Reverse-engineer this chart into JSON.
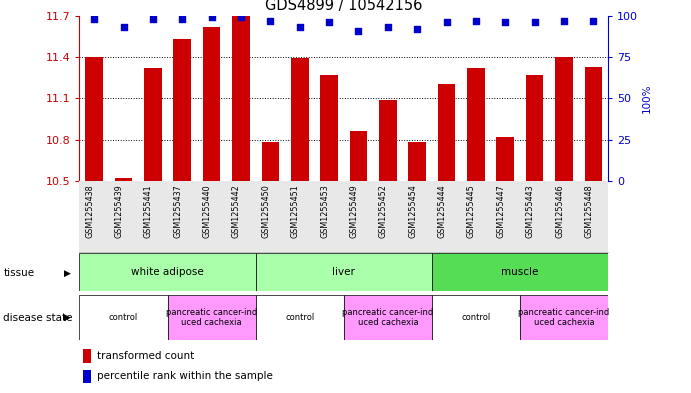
{
  "title": "GDS4899 / 10542156",
  "samples": [
    "GSM1255438",
    "GSM1255439",
    "GSM1255441",
    "GSM1255437",
    "GSM1255440",
    "GSM1255442",
    "GSM1255450",
    "GSM1255451",
    "GSM1255453",
    "GSM1255449",
    "GSM1255452",
    "GSM1255454",
    "GSM1255444",
    "GSM1255445",
    "GSM1255447",
    "GSM1255443",
    "GSM1255446",
    "GSM1255448"
  ],
  "bar_values": [
    11.4,
    10.52,
    11.32,
    11.53,
    11.62,
    11.7,
    10.78,
    11.39,
    11.27,
    10.86,
    11.09,
    10.78,
    11.2,
    11.32,
    10.82,
    11.27,
    11.4,
    11.33
  ],
  "percentile_values": [
    98,
    93,
    98,
    98,
    99,
    99,
    97,
    93,
    96,
    91,
    93,
    92,
    96,
    97,
    96,
    96,
    97,
    97
  ],
  "bar_color": "#cc0000",
  "percentile_color": "#0000cc",
  "ylim_left": [
    10.5,
    11.7
  ],
  "ylim_right": [
    0,
    100
  ],
  "yticks_left": [
    10.5,
    10.8,
    11.1,
    11.4,
    11.7
  ],
  "yticks_right": [
    0,
    25,
    50,
    75,
    100
  ],
  "tissue_groups": [
    {
      "label": "white adipose",
      "start": 0,
      "end": 6,
      "color": "#aaffaa"
    },
    {
      "label": "liver",
      "start": 6,
      "end": 12,
      "color": "#aaffaa"
    },
    {
      "label": "muscle",
      "start": 12,
      "end": 18,
      "color": "#55dd55"
    }
  ],
  "disease_groups": [
    {
      "label": "control",
      "start": 0,
      "end": 3,
      "color": "#ffffff"
    },
    {
      "label": "pancreatic cancer-ind\nuced cachexia",
      "start": 3,
      "end": 6,
      "color": "#ff99ff"
    },
    {
      "label": "control",
      "start": 6,
      "end": 9,
      "color": "#ffffff"
    },
    {
      "label": "pancreatic cancer-ind\nuced cachexia",
      "start": 9,
      "end": 12,
      "color": "#ff99ff"
    },
    {
      "label": "control",
      "start": 12,
      "end": 15,
      "color": "#ffffff"
    },
    {
      "label": "pancreatic cancer-ind\nuced cachexia",
      "start": 15,
      "end": 18,
      "color": "#ff99ff"
    }
  ],
  "tissue_row_label": "tissue",
  "disease_row_label": "disease state",
  "legend_bar_label": "transformed count",
  "legend_pct_label": "percentile rank within the sample",
  "bg_color": "#e8e8e8"
}
